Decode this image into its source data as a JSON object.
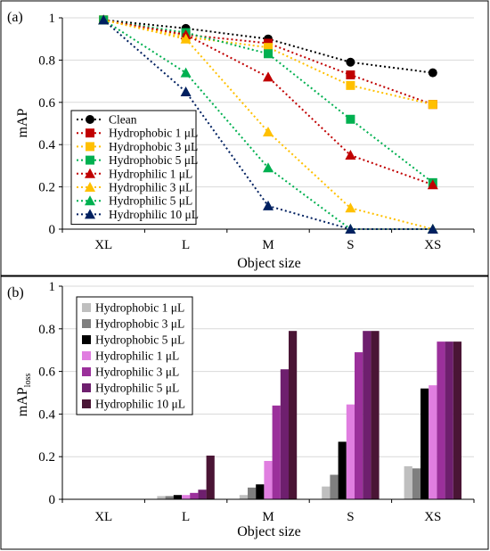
{
  "chart_data": [
    {
      "panel_label": "(a)",
      "type": "line",
      "categories": [
        "XL",
        "L",
        "M",
        "S",
        "XS"
      ],
      "xlabel": "Object size",
      "ylabel": "mAP",
      "ylim": [
        0,
        1
      ],
      "yticks": [
        "0",
        "0.2",
        "0.4",
        "0.6",
        "0.8",
        "1"
      ],
      "grid": true,
      "legend_position": "bottom-left",
      "series": [
        {
          "name": "Clean",
          "color": "#000000",
          "marker": "circle",
          "values": [
            0.99,
            0.95,
            0.9,
            0.79,
            0.74
          ]
        },
        {
          "name": "Hydrophobic 1 μL",
          "color": "#c00000",
          "marker": "square",
          "values": [
            0.99,
            0.92,
            0.88,
            0.73,
            0.59
          ]
        },
        {
          "name": "Hydrophobic 3 μL",
          "color": "#ffc000",
          "marker": "square",
          "values": [
            0.99,
            0.91,
            0.86,
            0.68,
            0.59
          ]
        },
        {
          "name": "Hydrophobic 5 μL",
          "color": "#00b050",
          "marker": "square",
          "values": [
            0.99,
            0.93,
            0.83,
            0.52,
            0.22
          ]
        },
        {
          "name": "Hydrophilic 1 μL",
          "color": "#c00000",
          "marker": "triangle",
          "values": [
            0.99,
            0.92,
            0.72,
            0.35,
            0.21
          ]
        },
        {
          "name": "Hydrophilic 3 μL",
          "color": "#ffc000",
          "marker": "triangle",
          "values": [
            0.99,
            0.9,
            0.46,
            0.1,
            0.0
          ]
        },
        {
          "name": "Hydrophilic 5 μL",
          "color": "#00b050",
          "marker": "triangle",
          "values": [
            0.99,
            0.74,
            0.29,
            0.0,
            0.0
          ]
        },
        {
          "name": "Hydrophilic 10 μL",
          "color": "#002060",
          "marker": "triangle",
          "values": [
            0.99,
            0.65,
            0.11,
            0.0,
            0.0
          ]
        }
      ]
    },
    {
      "panel_label": "(b)",
      "type": "bar",
      "categories": [
        "XL",
        "L",
        "M",
        "S",
        "XS"
      ],
      "xlabel": "Object size",
      "ylabel": "mAP",
      "ylabel_subscript": "loss",
      "ylim": [
        0,
        1
      ],
      "yticks": [
        "0",
        "0.2",
        "0.4",
        "0.6",
        "0.8",
        "1"
      ],
      "grid": true,
      "legend_position": "top-left",
      "series": [
        {
          "name": "Hydrophobic 1 μL",
          "color": "#bfbfbf",
          "values": [
            0.0,
            0.015,
            0.02,
            0.06,
            0.155
          ]
        },
        {
          "name": "Hydrophobic 3 μL",
          "color": "#7f7f7f",
          "values": [
            0.0,
            0.015,
            0.055,
            0.115,
            0.145
          ]
        },
        {
          "name": "Hydrophobic 5 μL",
          "color": "#000000",
          "values": [
            0.0,
            0.02,
            0.07,
            0.27,
            0.52
          ]
        },
        {
          "name": "Hydrophilic 1 μL",
          "color": "#e07ee0",
          "values": [
            0.0,
            0.02,
            0.18,
            0.445,
            0.535
          ]
        },
        {
          "name": "Hydrophilic 3 μL",
          "color": "#9b309b",
          "values": [
            0.0,
            0.03,
            0.44,
            0.69,
            0.74
          ]
        },
        {
          "name": "Hydrophilic 5 μL",
          "color": "#6e1f6e",
          "values": [
            0.0,
            0.045,
            0.61,
            0.79,
            0.74
          ]
        },
        {
          "name": "Hydrophilic 10 μL",
          "color": "#4a1535",
          "values": [
            0.0,
            0.205,
            0.79,
            0.79,
            0.74
          ]
        }
      ]
    }
  ]
}
